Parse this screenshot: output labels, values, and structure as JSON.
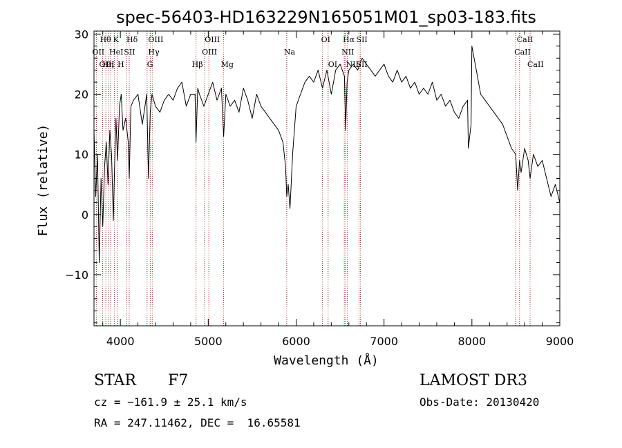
{
  "chart_data": {
    "type": "line",
    "title": "spec-56403-HD163229N165051M01_sp03-183.fits",
    "xlabel": "Wavelength (Å)",
    "ylabel": "Flux (relative)",
    "xlim": [
      3700,
      9000
    ],
    "ylim": [
      -18.5,
      30.5
    ],
    "x_ticks": [
      4000,
      5000,
      6000,
      7000,
      8000,
      9000
    ],
    "y_ticks": [
      -10,
      0,
      10,
      20,
      30
    ],
    "x_minor_step": 200,
    "y_minor_step": 2,
    "line_color": "#000000",
    "marker_color": "#b22222",
    "series": [
      {
        "name": "flux",
        "x": [
          3700,
          3720,
          3740,
          3760,
          3780,
          3800,
          3820,
          3840,
          3860,
          3880,
          3900,
          3920,
          3933,
          3950,
          3968,
          3990,
          4010,
          4030,
          4060,
          4090,
          4101,
          4120,
          4150,
          4200,
          4250,
          4300,
          4320,
          4340,
          4360,
          4400,
          4450,
          4500,
          4550,
          4600,
          4650,
          4700,
          4750,
          4800,
          4850,
          4861,
          4880,
          4900,
          4950,
          5000,
          5050,
          5100,
          5150,
          5175,
          5200,
          5250,
          5300,
          5350,
          5400,
          5450,
          5500,
          5550,
          5600,
          5650,
          5700,
          5750,
          5800,
          5850,
          5880,
          5893,
          5910,
          5930,
          5960,
          6000,
          6050,
          6100,
          6150,
          6200,
          6250,
          6300,
          6350,
          6400,
          6450,
          6500,
          6550,
          6563,
          6580,
          6600,
          6650,
          6700,
          6750,
          6800,
          6850,
          6900,
          6950,
          7000,
          7050,
          7100,
          7150,
          7200,
          7250,
          7300,
          7350,
          7400,
          7450,
          7500,
          7550,
          7600,
          7650,
          7700,
          7750,
          7800,
          7850,
          7900,
          7950,
          7960,
          7990,
          8000,
          8050,
          8100,
          8150,
          8200,
          8250,
          8300,
          8350,
          8400,
          8450,
          8498,
          8520,
          8542,
          8560,
          8600,
          8640,
          8662,
          8700,
          8750,
          8800,
          8850,
          8900,
          8950,
          9000
        ],
        "y": [
          14,
          3,
          10,
          -8,
          6,
          -2,
          8,
          12,
          5,
          14,
          10,
          -1,
          7,
          16,
          9,
          18,
          20,
          14,
          16,
          12,
          6,
          18,
          19,
          20,
          15,
          20,
          6,
          17,
          20,
          18,
          17,
          19,
          20,
          19,
          21,
          22,
          18,
          20,
          20,
          12,
          21,
          20,
          18,
          20,
          22,
          19,
          21,
          13,
          20,
          18,
          19,
          17,
          21,
          19,
          16,
          20,
          18,
          17,
          16,
          15,
          14,
          12,
          8,
          3,
          5,
          1,
          10,
          18,
          20,
          22,
          23,
          22,
          24,
          21,
          24,
          20,
          24,
          25,
          23,
          14,
          22,
          24,
          25,
          24,
          26,
          25,
          24,
          23,
          24,
          25,
          23,
          22,
          24,
          22,
          23,
          21,
          22,
          20,
          21,
          20,
          22,
          19,
          20,
          18,
          19,
          17,
          16,
          18,
          19,
          11,
          15,
          28,
          24,
          20,
          19,
          18,
          17,
          16,
          15,
          13,
          11,
          10,
          4,
          9,
          7,
          11,
          9,
          6,
          10,
          8,
          9,
          6,
          3,
          5,
          2
        ]
      }
    ],
    "lines": [
      {
        "wave": 3727,
        "label": "OII",
        "row": 1,
        "x_off": -6
      },
      {
        "wave": 3798,
        "label": "Hθ",
        "row": 0,
        "x_off": -4
      },
      {
        "wave": 3835,
        "label": "Hη",
        "row": 2,
        "x_off": -5
      },
      {
        "wave": 3869,
        "label": "OIII",
        "row": 2,
        "x_off": -14
      },
      {
        "wave": 3889,
        "label": "HeI",
        "row": 1,
        "x_off": -2
      },
      {
        "wave": 3933,
        "label": "K",
        "row": 0,
        "x_off": -2
      },
      {
        "wave": 3968,
        "label": "H",
        "row": 2,
        "x_off": 0
      },
      {
        "wave": 4072,
        "label": "SII",
        "row": 1,
        "x_off": -4
      },
      {
        "wave": 4101,
        "label": "Hδ",
        "row": 0,
        "x_off": -4
      },
      {
        "wave": 4304,
        "label": "G",
        "row": 2,
        "x_off": 0
      },
      {
        "wave": 4340,
        "label": "Hγ",
        "row": 1,
        "x_off": -3
      },
      {
        "wave": 4363,
        "label": "OIII",
        "row": 0,
        "x_off": -6
      },
      {
        "wave": 4861,
        "label": "Hβ",
        "row": 2,
        "x_off": -6
      },
      {
        "wave": 4959,
        "label": "OIII",
        "row": 1,
        "x_off": -4
      },
      {
        "wave": 5007,
        "label": "OIII",
        "row": 0,
        "x_off": -6
      },
      {
        "wave": 5175,
        "label": "Mg",
        "row": 2,
        "x_off": -4
      },
      {
        "wave": 5893,
        "label": "Na",
        "row": 1,
        "x_off": -4
      },
      {
        "wave": 6300,
        "label": "OI",
        "row": 0,
        "x_off": -2
      },
      {
        "wave": 6364,
        "label": "OI",
        "row": 2,
        "x_off": 0
      },
      {
        "wave": 6548,
        "label": "NII",
        "row": 1,
        "x_off": -4
      },
      {
        "wave": 6563,
        "label": "Hα",
        "row": 0,
        "x_off": -4
      },
      {
        "wave": 6583,
        "label": "NII",
        "row": 2,
        "x_off": -2
      },
      {
        "wave": 6716,
        "label": "SII",
        "row": 0,
        "x_off": -4
      },
      {
        "wave": 6731,
        "label": "SII",
        "row": 2,
        "x_off": -6
      },
      {
        "wave": 8498,
        "label": "CaII",
        "row": 1,
        "x_off": -2
      },
      {
        "wave": 8542,
        "label": "CaII",
        "row": 0,
        "x_off": -4
      },
      {
        "wave": 8662,
        "label": "CaII",
        "row": 2,
        "x_off": -4
      }
    ]
  },
  "info": {
    "object_class": "STAR",
    "subclass": "F7",
    "survey": "LAMOST DR3",
    "redshift_text": "cz = −161.9 ± 25.1 km/s",
    "obs_date": "Obs-Date: 20130420",
    "coords": "RA = 247.11462, DEC =  16.65581"
  }
}
